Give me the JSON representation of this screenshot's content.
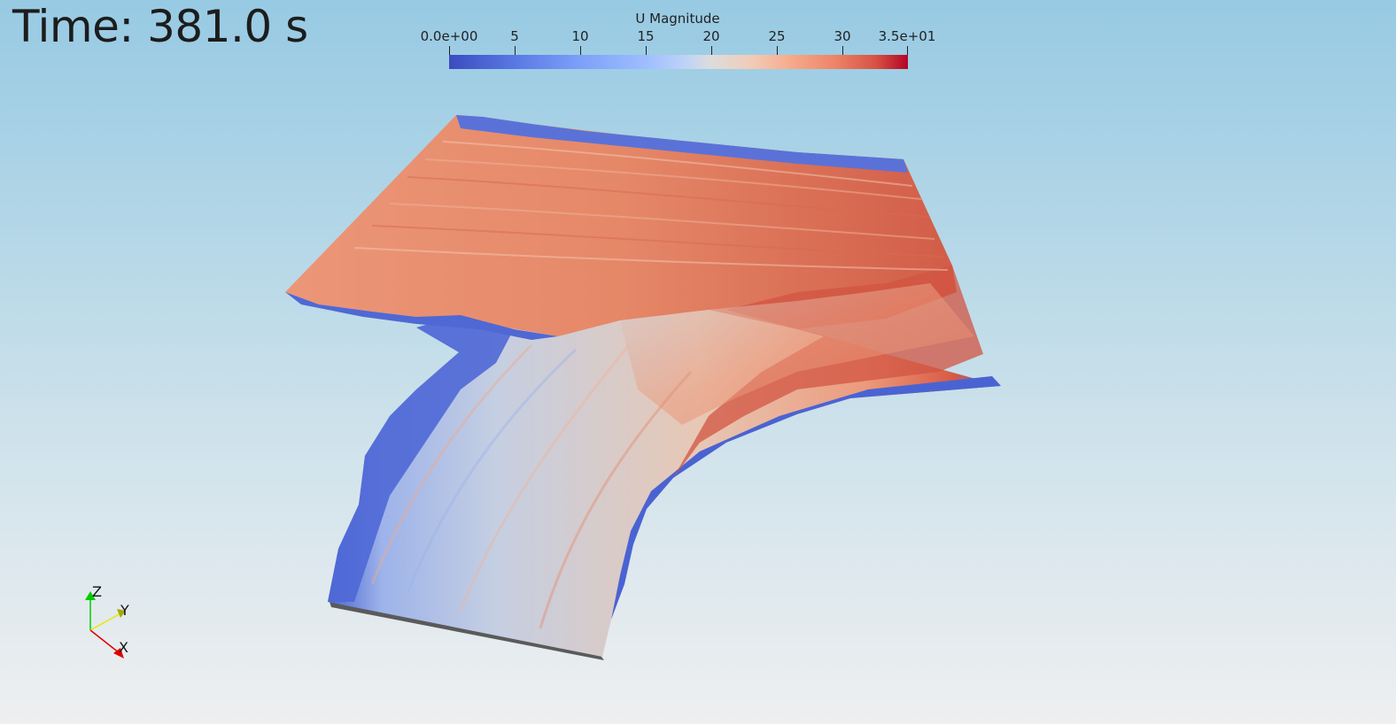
{
  "viewer": {
    "time_label": "Time: 381.0 s"
  },
  "scalar_bar": {
    "title": "U Magnitude",
    "ticks": [
      "0.0e+00",
      "5",
      "10",
      "15",
      "20",
      "25",
      "30",
      "3.5e+01"
    ],
    "range": [
      0,
      35
    ],
    "colormap": [
      "#3b4cc0",
      "#dddcdc",
      "#b40426"
    ]
  },
  "orientation_axes": {
    "z_label": "Z",
    "y_label": "Y",
    "x_label": "X",
    "z_color": "#00cc00",
    "y_color": "#e8e800",
    "x_color": "#e00000"
  }
}
